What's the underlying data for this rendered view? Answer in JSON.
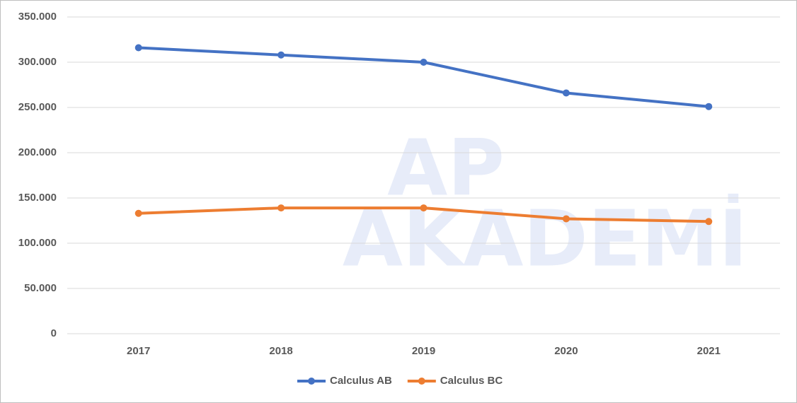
{
  "chart_data": {
    "type": "line",
    "watermark": [
      "AP",
      "AKADEMİ"
    ],
    "categories": [
      "2017",
      "2018",
      "2019",
      "2020",
      "2021"
    ],
    "series": [
      {
        "name": "Calculus AB",
        "color": "#4472c4",
        "values": [
          316000,
          308000,
          300000,
          266000,
          251000
        ]
      },
      {
        "name": "Calculus BC",
        "color": "#ed7d31",
        "values": [
          133000,
          139000,
          139000,
          127000,
          124000
        ]
      }
    ],
    "ylim": [
      0,
      350000
    ],
    "yticks": [
      0,
      {
        "value": 50000,
        "label": "50.000"
      },
      {
        "value": 100000,
        "label": "100.000"
      },
      {
        "value": 150000,
        "label": "150.000"
      },
      {
        "value": 200000,
        "label": "200.000"
      },
      {
        "value": 250000,
        "label": "250.000"
      },
      {
        "value": 300000,
        "label": "300.000"
      },
      {
        "value": 350000,
        "label": "350.000"
      }
    ],
    "grid": true,
    "legend": "bottom"
  }
}
